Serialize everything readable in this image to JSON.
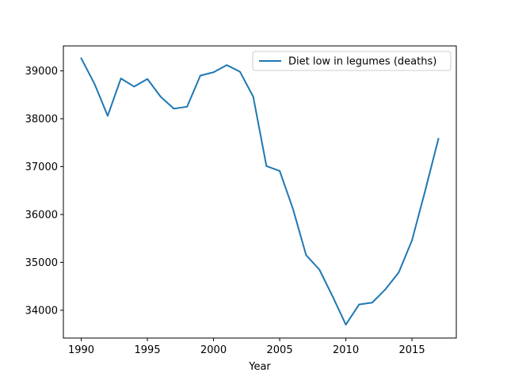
{
  "chart_data": {
    "type": "line",
    "title": "",
    "xlabel": "Year",
    "ylabel": "",
    "xlim": [
      1988.65,
      2018.35
    ],
    "ylim": [
      33420,
      39520
    ],
    "xticks": [
      1990,
      1995,
      2000,
      2005,
      2010,
      2015
    ],
    "yticks": [
      34000,
      35000,
      36000,
      37000,
      38000,
      39000
    ],
    "grid": false,
    "legend_position": "top-right",
    "series": [
      {
        "name": "Diet low in legumes (deaths)",
        "color": "#1f77b4",
        "x": [
          1990,
          1991,
          1992,
          1993,
          1994,
          1995,
          1996,
          1997,
          1998,
          1999,
          2000,
          2001,
          2002,
          2003,
          2004,
          2005,
          2006,
          2007,
          2008,
          2009,
          2010,
          2011,
          2012,
          2013,
          2014,
          2015,
          2016,
          2017
        ],
        "y": [
          39260,
          38730,
          38060,
          38840,
          38670,
          38830,
          38460,
          38210,
          38250,
          38900,
          38970,
          39120,
          38980,
          38460,
          37010,
          36910,
          36120,
          35150,
          34850,
          34290,
          33700,
          34120,
          34160,
          34440,
          34790,
          35460,
          36500,
          37580
        ]
      }
    ]
  }
}
